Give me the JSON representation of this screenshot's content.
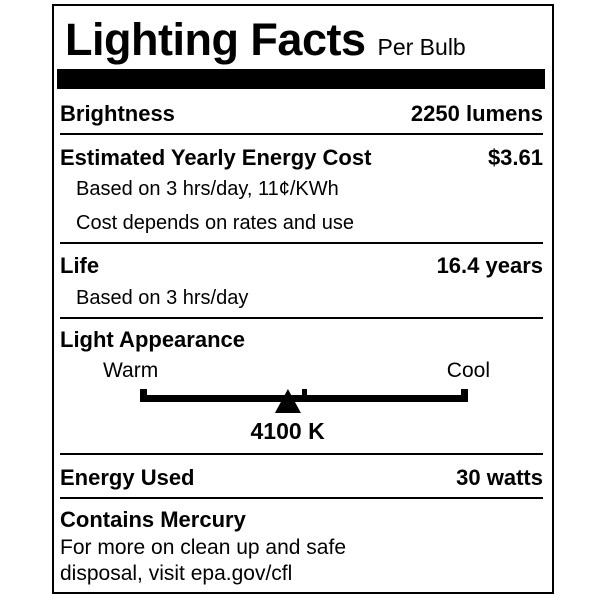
{
  "label": {
    "title": "Lighting Facts",
    "subtitle": "Per Bulb",
    "brightness": {
      "label": "Brightness",
      "value": "2250 lumens"
    },
    "energy_cost": {
      "label": "Estimated Yearly Energy Cost",
      "value": "$3.61",
      "notes": [
        "Based on 3 hrs/day, 11¢/KWh",
        "Cost depends on rates and use"
      ]
    },
    "life": {
      "label": "Life",
      "value": "16.4 years",
      "notes": [
        "Based on 3 hrs/day"
      ]
    },
    "light_appearance": {
      "label": "Light Appearance",
      "warm_label": "Warm",
      "cool_label": "Cool",
      "kelvin": "4100 K",
      "marker_position_pct": 45
    },
    "energy_used": {
      "label": "Energy Used",
      "value": "30 watts"
    },
    "mercury": {
      "label": "Contains Mercury",
      "lines": [
        "For more on clean up and safe",
        "disposal, visit epa.gov/cfl"
      ]
    },
    "colors": {
      "text": "#000000",
      "background": "#ffffff",
      "border": "#000000"
    }
  }
}
